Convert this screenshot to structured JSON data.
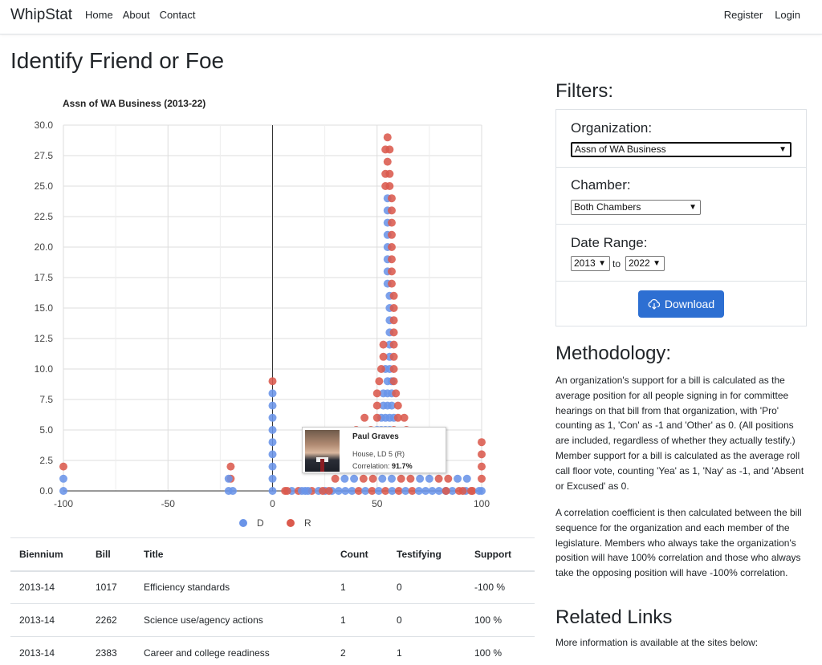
{
  "nav": {
    "brand": "WhipStat",
    "links": [
      "Home",
      "About",
      "Contact"
    ],
    "right_links": [
      "Register",
      "Login"
    ]
  },
  "page_title": "Identify Friend or Foe",
  "colors": {
    "D": "#6a94e8",
    "R": "#db5a4d",
    "accent": "#2d6fd2"
  },
  "chart_data": {
    "type": "scatter",
    "title": "Assn of WA Business (2013-22)",
    "xlabel": "",
    "ylabel": "",
    "xlim": [
      -100,
      100
    ],
    "ylim": [
      0,
      30
    ],
    "x_ticks": [
      "-100",
      "-50",
      "0",
      "50",
      "100"
    ],
    "y_ticks": [
      "0.0",
      "2.5",
      "5.0",
      "7.5",
      "10.0",
      "12.5",
      "15.0",
      "17.5",
      "20.0",
      "22.5",
      "25.0",
      "27.5",
      "30.0"
    ],
    "grid": true,
    "legend": "bottom",
    "series": [
      {
        "name": "D",
        "color": "#6a94e8"
      },
      {
        "name": "R",
        "color": "#db5a4d"
      }
    ]
  },
  "tooltip": {
    "name": "Paul Graves",
    "district": "House, LD 5 (R)",
    "correlation_label": "Correlation:",
    "correlation_value": "91.7%"
  },
  "table": {
    "headers": [
      "Biennium",
      "Bill",
      "Title",
      "Count",
      "Testifying",
      "Support"
    ],
    "rows": [
      [
        "2013-14",
        "1017",
        "Efficiency standards",
        "1",
        "0",
        "-100 %"
      ],
      [
        "2013-14",
        "2262",
        "Science use/agency actions",
        "1",
        "0",
        "100 %"
      ],
      [
        "2013-14",
        "2383",
        "Career and college readiness",
        "2",
        "1",
        "100 %"
      ]
    ]
  },
  "filters": {
    "title": "Filters:",
    "organization_label": "Organization:",
    "organization_value": "Assn of WA Business",
    "chamber_label": "Chamber:",
    "chamber_value": "Both Chambers",
    "date_label": "Date Range:",
    "date_from": "2013",
    "date_to": "2022",
    "to_text": "to",
    "download_label": "Download"
  },
  "methodology": {
    "title": "Methodology:",
    "para1": "An organization's support for a bill is calculated as the average position for all people signing in for committee hearings on that bill from that organization, with 'Pro' counting as 1, 'Con' as -1 and 'Other' as 0. (All positions are included, regardless of whether they actually testify.) Member support for a bill is calculated as the average roll call floor vote, counting 'Yea' as 1, 'Nay' as -1, and 'Absent or Excused' as 0.",
    "para2": "A correlation coefficient is then calculated between the bill sequence for the organization and each member of the legislature. Members who always take the organization's position will have 100% correlation and those who always take the opposing position will have -100% correlation."
  },
  "related": {
    "title": "Related Links",
    "text": "More information is available at the sites below:"
  }
}
